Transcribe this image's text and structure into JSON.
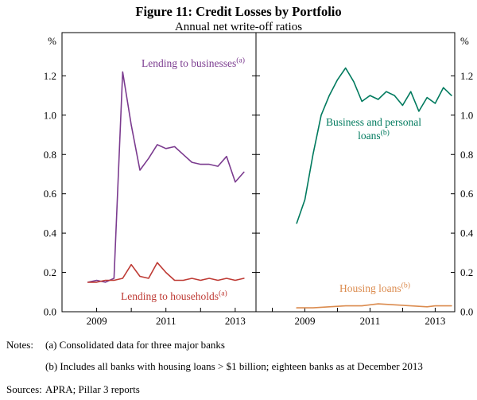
{
  "figure": {
    "title": "Figure 11: Credit Losses by Portfolio",
    "subtitle": "Annual net write-off ratios"
  },
  "chart_data": {
    "type": "line",
    "title": "Figure 11: Credit Losses by Portfolio",
    "subtitle": "Annual net write-off ratios",
    "unit": "%",
    "ylim": [
      0,
      1.42
    ],
    "yticks": [
      0.0,
      0.2,
      0.4,
      0.6,
      0.8,
      1.0,
      1.2
    ],
    "x_labels": [
      2009,
      2011,
      2013
    ],
    "grid": false,
    "legend": "inline-annotations",
    "panels": [
      {
        "side": "left",
        "x_domain": [
          2008.0,
          2013.6
        ],
        "series": [
          {
            "name": "Lending to businesses",
            "footnote": "(a)",
            "color": "#7B3B8F",
            "points": [
              [
                2008.75,
                0.15
              ],
              [
                2009.0,
                0.16
              ],
              [
                2009.25,
                0.15
              ],
              [
                2009.5,
                0.17
              ],
              [
                2009.75,
                1.22
              ],
              [
                2010.0,
                0.95
              ],
              [
                2010.25,
                0.72
              ],
              [
                2010.5,
                0.78
              ],
              [
                2010.75,
                0.85
              ],
              [
                2011.0,
                0.83
              ],
              [
                2011.25,
                0.84
              ],
              [
                2011.5,
                0.8
              ],
              [
                2011.75,
                0.76
              ],
              [
                2012.0,
                0.75
              ],
              [
                2012.25,
                0.75
              ],
              [
                2012.5,
                0.74
              ],
              [
                2012.75,
                0.79
              ],
              [
                2013.0,
                0.66
              ],
              [
                2013.25,
                0.71
              ]
            ]
          },
          {
            "name": "Lending to households",
            "footnote": "(a)",
            "color": "#BE3A34",
            "points": [
              [
                2008.75,
                0.15
              ],
              [
                2009.0,
                0.15
              ],
              [
                2009.25,
                0.16
              ],
              [
                2009.5,
                0.16
              ],
              [
                2009.75,
                0.17
              ],
              [
                2010.0,
                0.24
              ],
              [
                2010.25,
                0.18
              ],
              [
                2010.5,
                0.17
              ],
              [
                2010.75,
                0.25
              ],
              [
                2011.0,
                0.2
              ],
              [
                2011.25,
                0.16
              ],
              [
                2011.5,
                0.16
              ],
              [
                2011.75,
                0.17
              ],
              [
                2012.0,
                0.16
              ],
              [
                2012.25,
                0.17
              ],
              [
                2012.5,
                0.16
              ],
              [
                2012.75,
                0.17
              ],
              [
                2013.0,
                0.16
              ],
              [
                2013.25,
                0.17
              ]
            ]
          }
        ]
      },
      {
        "side": "right",
        "x_domain": [
          2007.5,
          2013.6
        ],
        "series": [
          {
            "name": "Business and personal loans",
            "footnote": "(b)",
            "color": "#007A5E",
            "points": [
              [
                2008.75,
                0.45
              ],
              [
                2009.0,
                0.57
              ],
              [
                2009.25,
                0.8
              ],
              [
                2009.5,
                1.0
              ],
              [
                2009.75,
                1.1
              ],
              [
                2010.0,
                1.18
              ],
              [
                2010.25,
                1.24
              ],
              [
                2010.5,
                1.17
              ],
              [
                2010.75,
                1.07
              ],
              [
                2011.0,
                1.1
              ],
              [
                2011.25,
                1.08
              ],
              [
                2011.5,
                1.12
              ],
              [
                2011.75,
                1.1
              ],
              [
                2012.0,
                1.05
              ],
              [
                2012.25,
                1.12
              ],
              [
                2012.5,
                1.02
              ],
              [
                2012.75,
                1.09
              ],
              [
                2013.0,
                1.06
              ],
              [
                2013.25,
                1.14
              ],
              [
                2013.5,
                1.1
              ]
            ]
          },
          {
            "name": "Housing loans",
            "footnote": "(b)",
            "color": "#DB8B4E",
            "points": [
              [
                2008.75,
                0.02
              ],
              [
                2009.25,
                0.02
              ],
              [
                2009.75,
                0.025
              ],
              [
                2010.25,
                0.03
              ],
              [
                2010.75,
                0.03
              ],
              [
                2011.25,
                0.04
              ],
              [
                2011.75,
                0.035
              ],
              [
                2012.25,
                0.03
              ],
              [
                2012.75,
                0.025
              ],
              [
                2013.0,
                0.03
              ],
              [
                2013.5,
                0.03
              ]
            ]
          }
        ]
      }
    ]
  },
  "notes": {
    "label": "Notes:",
    "items": [
      "(a) Consolidated data for three major banks",
      "(b) Includes all banks with housing loans > $1 billion; eighteen banks as at December 2013"
    ]
  },
  "sources": {
    "label": "Sources:",
    "text": "APRA; Pillar 3 reports"
  }
}
